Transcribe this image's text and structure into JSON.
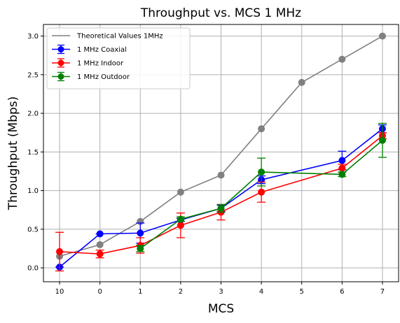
{
  "chart_data": {
    "type": "line",
    "title": "Throughput vs. MCS 1 MHz",
    "xlabel": "MCS",
    "ylabel": "Throughput (Mbps)",
    "categories": [
      "10",
      "0",
      "1",
      "2",
      "3",
      "4",
      "5",
      "6",
      "7"
    ],
    "ylim": [
      -0.18,
      3.15
    ],
    "yticks": [
      "0.0",
      "0.5",
      "1.0",
      "1.5",
      "2.0",
      "2.5",
      "3.0"
    ],
    "grid": true,
    "legend_position": "top-left",
    "series": [
      {
        "name": "Theoretical Values 1MHz",
        "color": "#808080",
        "marker": "circle",
        "points": [
          {
            "x": "10",
            "y": 0.15
          },
          {
            "x": "0",
            "y": 0.3
          },
          {
            "x": "1",
            "y": 0.6
          },
          {
            "x": "2",
            "y": 0.98
          },
          {
            "x": "3",
            "y": 1.2
          },
          {
            "x": "4",
            "y": 1.8
          },
          {
            "x": "5",
            "y": 2.4
          },
          {
            "x": "6",
            "y": 2.7
          },
          {
            "x": "7",
            "y": 3.0
          }
        ]
      },
      {
        "name": "1 MHz Coaxial",
        "color": "#0000ff",
        "marker": "circle",
        "points": [
          {
            "x": "10",
            "y": 0.01,
            "err": 0.0
          },
          {
            "x": "0",
            "y": 0.44,
            "err": 0.0
          },
          {
            "x": "1",
            "y": 0.45,
            "err": 0.13
          },
          {
            "x": "2",
            "y": 0.62,
            "err": 0.02
          },
          {
            "x": "3",
            "y": 0.77,
            "err": 0.04
          },
          {
            "x": "4",
            "y": 1.14,
            "err": 0.05
          },
          {
            "x": "6",
            "y": 1.39,
            "err": 0.12
          },
          {
            "x": "7",
            "y": 1.8,
            "err": 0.05
          }
        ]
      },
      {
        "name": "1 MHz Indoor",
        "color": "#ff0000",
        "marker": "circle",
        "points": [
          {
            "x": "10",
            "y": 0.21,
            "err": 0.25
          },
          {
            "x": "0",
            "y": 0.18,
            "err": 0.05
          },
          {
            "x": "1",
            "y": 0.29,
            "err": 0.1
          },
          {
            "x": "2",
            "y": 0.55,
            "err": 0.16
          },
          {
            "x": "3",
            "y": 0.72,
            "err": 0.1
          },
          {
            "x": "4",
            "y": 0.98,
            "err": 0.13
          },
          {
            "x": "6",
            "y": 1.29,
            "err": 0.05
          },
          {
            "x": "7",
            "y": 1.71,
            "err": 0.04
          }
        ]
      },
      {
        "name": "1 MHz Outdoor",
        "color": "#008000",
        "marker": "circle",
        "points": [
          {
            "x": "1",
            "y": 0.25,
            "err": 0.04
          },
          {
            "x": "2",
            "y": 0.63,
            "err": 0.03
          },
          {
            "x": "3",
            "y": 0.77,
            "err": 0.05
          },
          {
            "x": "4",
            "y": 1.24,
            "err": 0.18
          },
          {
            "x": "6",
            "y": 1.21,
            "err": 0.03
          },
          {
            "x": "7",
            "y": 1.65,
            "err": 0.22
          }
        ]
      }
    ]
  }
}
